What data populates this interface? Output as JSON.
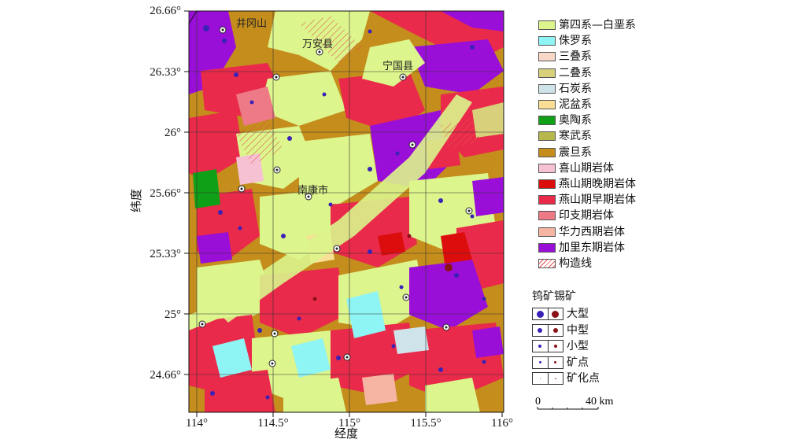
{
  "map": {
    "x_axis_label": "经度",
    "y_axis_label": "纬度",
    "x_ticks": [
      "114°",
      "114.5°",
      "115°",
      "115.5°",
      "116°"
    ],
    "y_ticks": [
      "26.66°",
      "26.33°",
      "26°",
      "25.66°",
      "25.33°",
      "25°",
      "24.66°"
    ],
    "city_labels": [
      "井冈山",
      "万安县",
      "宁国县",
      "南康市"
    ]
  },
  "legend": {
    "items": [
      {
        "label": "第四系—白垩系",
        "color": "#dcf58c"
      },
      {
        "label": "侏罗系",
        "color": "#8ff4f4"
      },
      {
        "label": "三叠系",
        "color": "#f9d7c9"
      },
      {
        "label": "二叠系",
        "color": "#d8d07a"
      },
      {
        "label": "石炭系",
        "color": "#cfe3ea"
      },
      {
        "label": "泥盆系",
        "color": "#f8df95"
      },
      {
        "label": "奥陶系",
        "color": "#10a017"
      },
      {
        "label": "寒武系",
        "color": "#b7b74e"
      },
      {
        "label": "震旦系",
        "color": "#c48d1c"
      },
      {
        "label": "喜山期岩体",
        "color": "#f6c2d3"
      },
      {
        "label": "燕山期晚期岩体",
        "color": "#dc0d0d"
      },
      {
        "label": "燕山期早期岩体",
        "color": "#ea2a4a"
      },
      {
        "label": "印支期岩体",
        "color": "#ed7a86"
      },
      {
        "label": "华力西期岩体",
        "color": "#f5b5a2"
      },
      {
        "label": "加里东期岩体",
        "color": "#9a0fd8"
      },
      {
        "label": "构造线",
        "color": "#e05050"
      }
    ]
  },
  "deposits": {
    "title": "钨矿锡矿",
    "tungsten_color": "#3a22b6",
    "tin_color": "#8a1218",
    "rows": [
      {
        "label": "大型",
        "size": 9
      },
      {
        "label": "中型",
        "size": 6
      },
      {
        "label": "小型",
        "size": 4
      },
      {
        "label": "矿点",
        "size": 3
      },
      {
        "label": "矿化点",
        "size": 1.5
      }
    ]
  },
  "scale": {
    "left": "0",
    "right": "40 km"
  }
}
